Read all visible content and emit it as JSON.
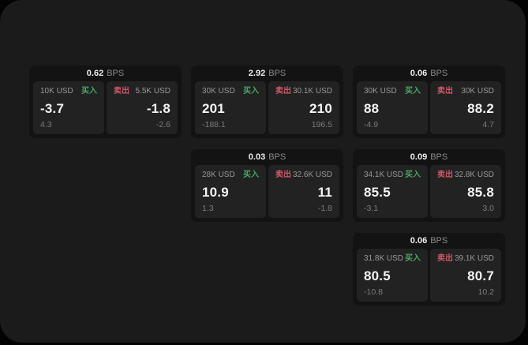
{
  "labels": {
    "bps": "BPS",
    "buy": "买入",
    "sell": "卖出"
  },
  "colors": {
    "buy_green": "#45a862",
    "sell_red": "#cf5666",
    "panel_bg": "#1b1b1c",
    "card_bg": "#131314",
    "tile_bg": "#222223",
    "value_text": "#f4f4f4",
    "muted_text": "#989898"
  },
  "cards": [
    {
      "bps": "0.62",
      "buy": {
        "notional": "10K USD",
        "value": "-3.7",
        "delta": "4.3"
      },
      "sell": {
        "notional": "5.5K USD",
        "value": "-1.8",
        "delta": "-2.6"
      }
    },
    {
      "bps": "2.92",
      "buy": {
        "notional": "30K USD",
        "value": "201",
        "delta": "-188.1"
      },
      "sell": {
        "notional": "30.1K USD",
        "value": "210",
        "delta": "196.5"
      }
    },
    {
      "bps": "0.06",
      "buy": {
        "notional": "30K USD",
        "value": "88",
        "delta": "-4.9"
      },
      "sell": {
        "notional": "30K USD",
        "value": "88.2",
        "delta": "4.7"
      }
    },
    {
      "bps": "0.03",
      "buy": {
        "notional": "28K USD",
        "value": "10.9",
        "delta": "1.3"
      },
      "sell": {
        "notional": "32.6K USD",
        "value": "11",
        "delta": "-1.8"
      }
    },
    {
      "bps": "0.09",
      "buy": {
        "notional": "34.1K USD",
        "value": "85.5",
        "delta": "-3.1"
      },
      "sell": {
        "notional": "32.8K USD",
        "value": "85.8",
        "delta": "3.0"
      }
    },
    {
      "bps": "0.06",
      "buy": {
        "notional": "31.8K USD",
        "value": "80.5",
        "delta": "-10.8"
      },
      "sell": {
        "notional": "39.1K USD",
        "value": "80.7",
        "delta": "10.2"
      }
    }
  ]
}
